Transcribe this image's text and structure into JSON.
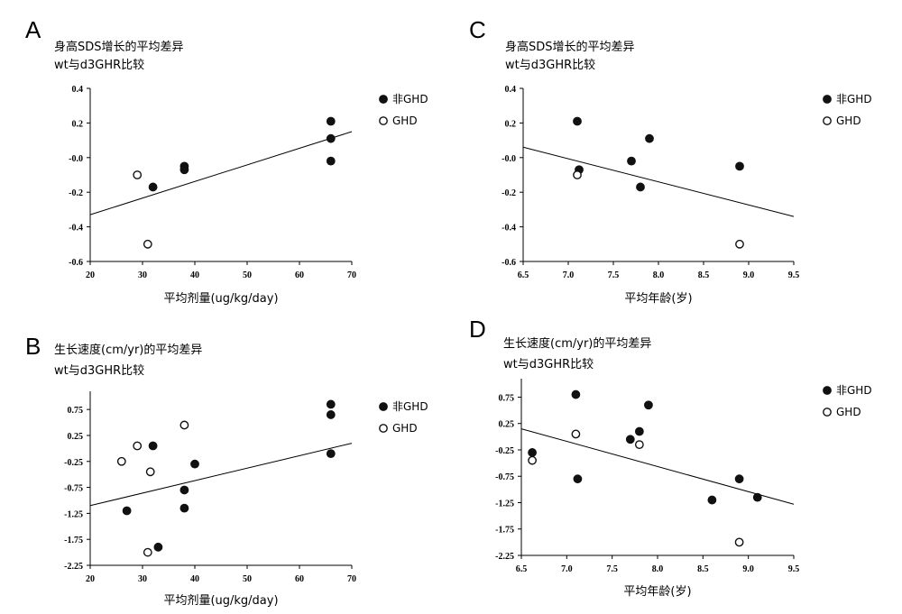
{
  "chart_data": [
    {
      "panel": "A",
      "type": "scatter",
      "title": [
        "身高SDS增长的平均差异",
        "wt与d3GHR比较"
      ],
      "xlabel": "平均剂量(ug/kg/day)",
      "ylabel": "",
      "xlim": [
        20,
        70
      ],
      "ylim": [
        -0.6,
        0.4
      ],
      "xticks": [
        20,
        30,
        40,
        50,
        60,
        70
      ],
      "xtick_labels": [
        "20",
        "30",
        "40",
        "50",
        "60",
        "70"
      ],
      "yticks": [
        0.4,
        0.2,
        0.0,
        -0.2,
        -0.4,
        -0.6
      ],
      "ytick_labels": [
        "0.4",
        "0.2",
        "-0.0",
        "-0.2",
        "-0.4",
        "-0.6"
      ],
      "legend": {
        "position": "top-right",
        "entries": [
          "非GHD",
          "GHD"
        ]
      },
      "series": [
        {
          "name": "非GHD",
          "marker": "filled",
          "points": [
            [
              32,
              -0.17
            ],
            [
              38,
              -0.05
            ],
            [
              38,
              -0.07
            ],
            [
              66,
              0.21
            ],
            [
              66,
              0.11
            ],
            [
              66,
              -0.02
            ]
          ]
        },
        {
          "name": "GHD",
          "marker": "open",
          "points": [
            [
              29,
              -0.1
            ],
            [
              31,
              -0.5
            ]
          ]
        }
      ],
      "trendline": [
        [
          20,
          -0.33
        ],
        [
          70,
          0.15
        ]
      ]
    },
    {
      "panel": "B",
      "type": "scatter",
      "title": [
        "生长速度(cm/yr)的平均差异",
        "wt与d3GHR比较"
      ],
      "xlabel": "平均剂量(ug/kg/day)",
      "ylabel": "",
      "xlim": [
        20,
        70
      ],
      "ylim": [
        -2.25,
        1.1
      ],
      "xticks": [
        20,
        30,
        40,
        50,
        60,
        70
      ],
      "xtick_labels": [
        "20",
        "30",
        "40",
        "50",
        "60",
        "70"
      ],
      "yticks": [
        0.75,
        0.25,
        -0.25,
        -0.75,
        -1.25,
        -1.75,
        -2.25
      ],
      "ytick_labels": [
        "0.75",
        "0.25",
        "-0.25",
        "-0.75",
        "-1.25",
        "-1.75",
        "-2.25"
      ],
      "legend": {
        "position": "top-right",
        "entries": [
          "非GHD",
          "GHD"
        ]
      },
      "series": [
        {
          "name": "非GHD",
          "marker": "filled",
          "points": [
            [
              27,
              -1.2
            ],
            [
              32,
              0.05
            ],
            [
              33,
              -1.9
            ],
            [
              38,
              -0.8
            ],
            [
              38,
              -1.15
            ],
            [
              40,
              -0.3
            ],
            [
              66,
              0.85
            ],
            [
              66,
              0.65
            ],
            [
              66,
              -0.1
            ]
          ]
        },
        {
          "name": "GHD",
          "marker": "open",
          "points": [
            [
              26,
              -0.25
            ],
            [
              29,
              0.05
            ],
            [
              31,
              -2.0
            ],
            [
              31.5,
              -0.45
            ],
            [
              38,
              0.45
            ]
          ]
        }
      ],
      "trendline": [
        [
          20,
          -1.1
        ],
        [
          70,
          0.1
        ]
      ]
    },
    {
      "panel": "C",
      "type": "scatter",
      "title": [
        "身高SDS增长的平均差异",
        "wt与d3GHR比较"
      ],
      "xlabel": "平均年龄(岁)",
      "ylabel": "",
      "xlim": [
        6.5,
        9.5
      ],
      "ylim": [
        -0.6,
        0.4
      ],
      "xticks": [
        6.5,
        7.0,
        7.5,
        8.0,
        8.5,
        9.0,
        9.5
      ],
      "xtick_labels": [
        "6.5",
        "7.0",
        "7.5",
        "8.0",
        "8.5",
        "9.0",
        "9.5"
      ],
      "yticks": [
        0.4,
        0.2,
        0.0,
        -0.2,
        -0.4,
        -0.6
      ],
      "ytick_labels": [
        "0.4",
        "0.2",
        "-0.0",
        "-0.2",
        "-0.4",
        "-0.6"
      ],
      "legend": {
        "position": "top-right",
        "entries": [
          "非GHD",
          "GHD"
        ]
      },
      "series": [
        {
          "name": "非GHD",
          "marker": "filled",
          "points": [
            [
              7.1,
              0.21
            ],
            [
              7.12,
              -0.07
            ],
            [
              7.7,
              -0.02
            ],
            [
              7.8,
              -0.17
            ],
            [
              7.9,
              0.11
            ],
            [
              8.9,
              -0.05
            ]
          ]
        },
        {
          "name": "GHD",
          "marker": "open",
          "points": [
            [
              7.1,
              -0.1
            ],
            [
              8.9,
              -0.5
            ]
          ]
        }
      ],
      "trendline": [
        [
          6.5,
          0.06
        ],
        [
          9.5,
          -0.34
        ]
      ]
    },
    {
      "panel": "D",
      "type": "scatter",
      "title": [
        "生长速度(cm/yr)的平均差异",
        "wt与d3GHR比较"
      ],
      "xlabel": "平均年龄(岁)",
      "ylabel": "",
      "xlim": [
        6.5,
        9.5
      ],
      "ylim": [
        -2.25,
        1.1
      ],
      "xticks": [
        6.5,
        7.0,
        7.5,
        8.0,
        8.5,
        9.0,
        9.5
      ],
      "xtick_labels": [
        "6.5",
        "7.0",
        "7.5",
        "8.0",
        "8.5",
        "9.0",
        "9.5"
      ],
      "yticks": [
        0.75,
        0.25,
        -0.25,
        -0.75,
        -1.25,
        -1.75,
        -2.25
      ],
      "ytick_labels": [
        "0.75",
        "0.25",
        "-0.25",
        "-0.75",
        "-1.25",
        "-1.75",
        "-2.25"
      ],
      "legend": {
        "position": "top-right",
        "entries": [
          "非GHD",
          "GHD"
        ]
      },
      "series": [
        {
          "name": "非GHD",
          "marker": "filled",
          "points": [
            [
              6.62,
              -0.3
            ],
            [
              7.1,
              0.8
            ],
            [
              7.12,
              -0.8
            ],
            [
              7.7,
              -0.05
            ],
            [
              7.8,
              0.1
            ],
            [
              7.9,
              0.6
            ],
            [
              8.6,
              -1.2
            ],
            [
              8.9,
              -0.8
            ],
            [
              9.1,
              -1.15
            ]
          ]
        },
        {
          "name": "GHD",
          "marker": "open",
          "points": [
            [
              6.62,
              -0.45
            ],
            [
              7.1,
              0.05
            ],
            [
              7.8,
              -0.15
            ],
            [
              8.9,
              -2.0
            ]
          ]
        }
      ],
      "trendline": [
        [
          6.5,
          0.15
        ],
        [
          9.5,
          -1.28
        ]
      ]
    }
  ]
}
